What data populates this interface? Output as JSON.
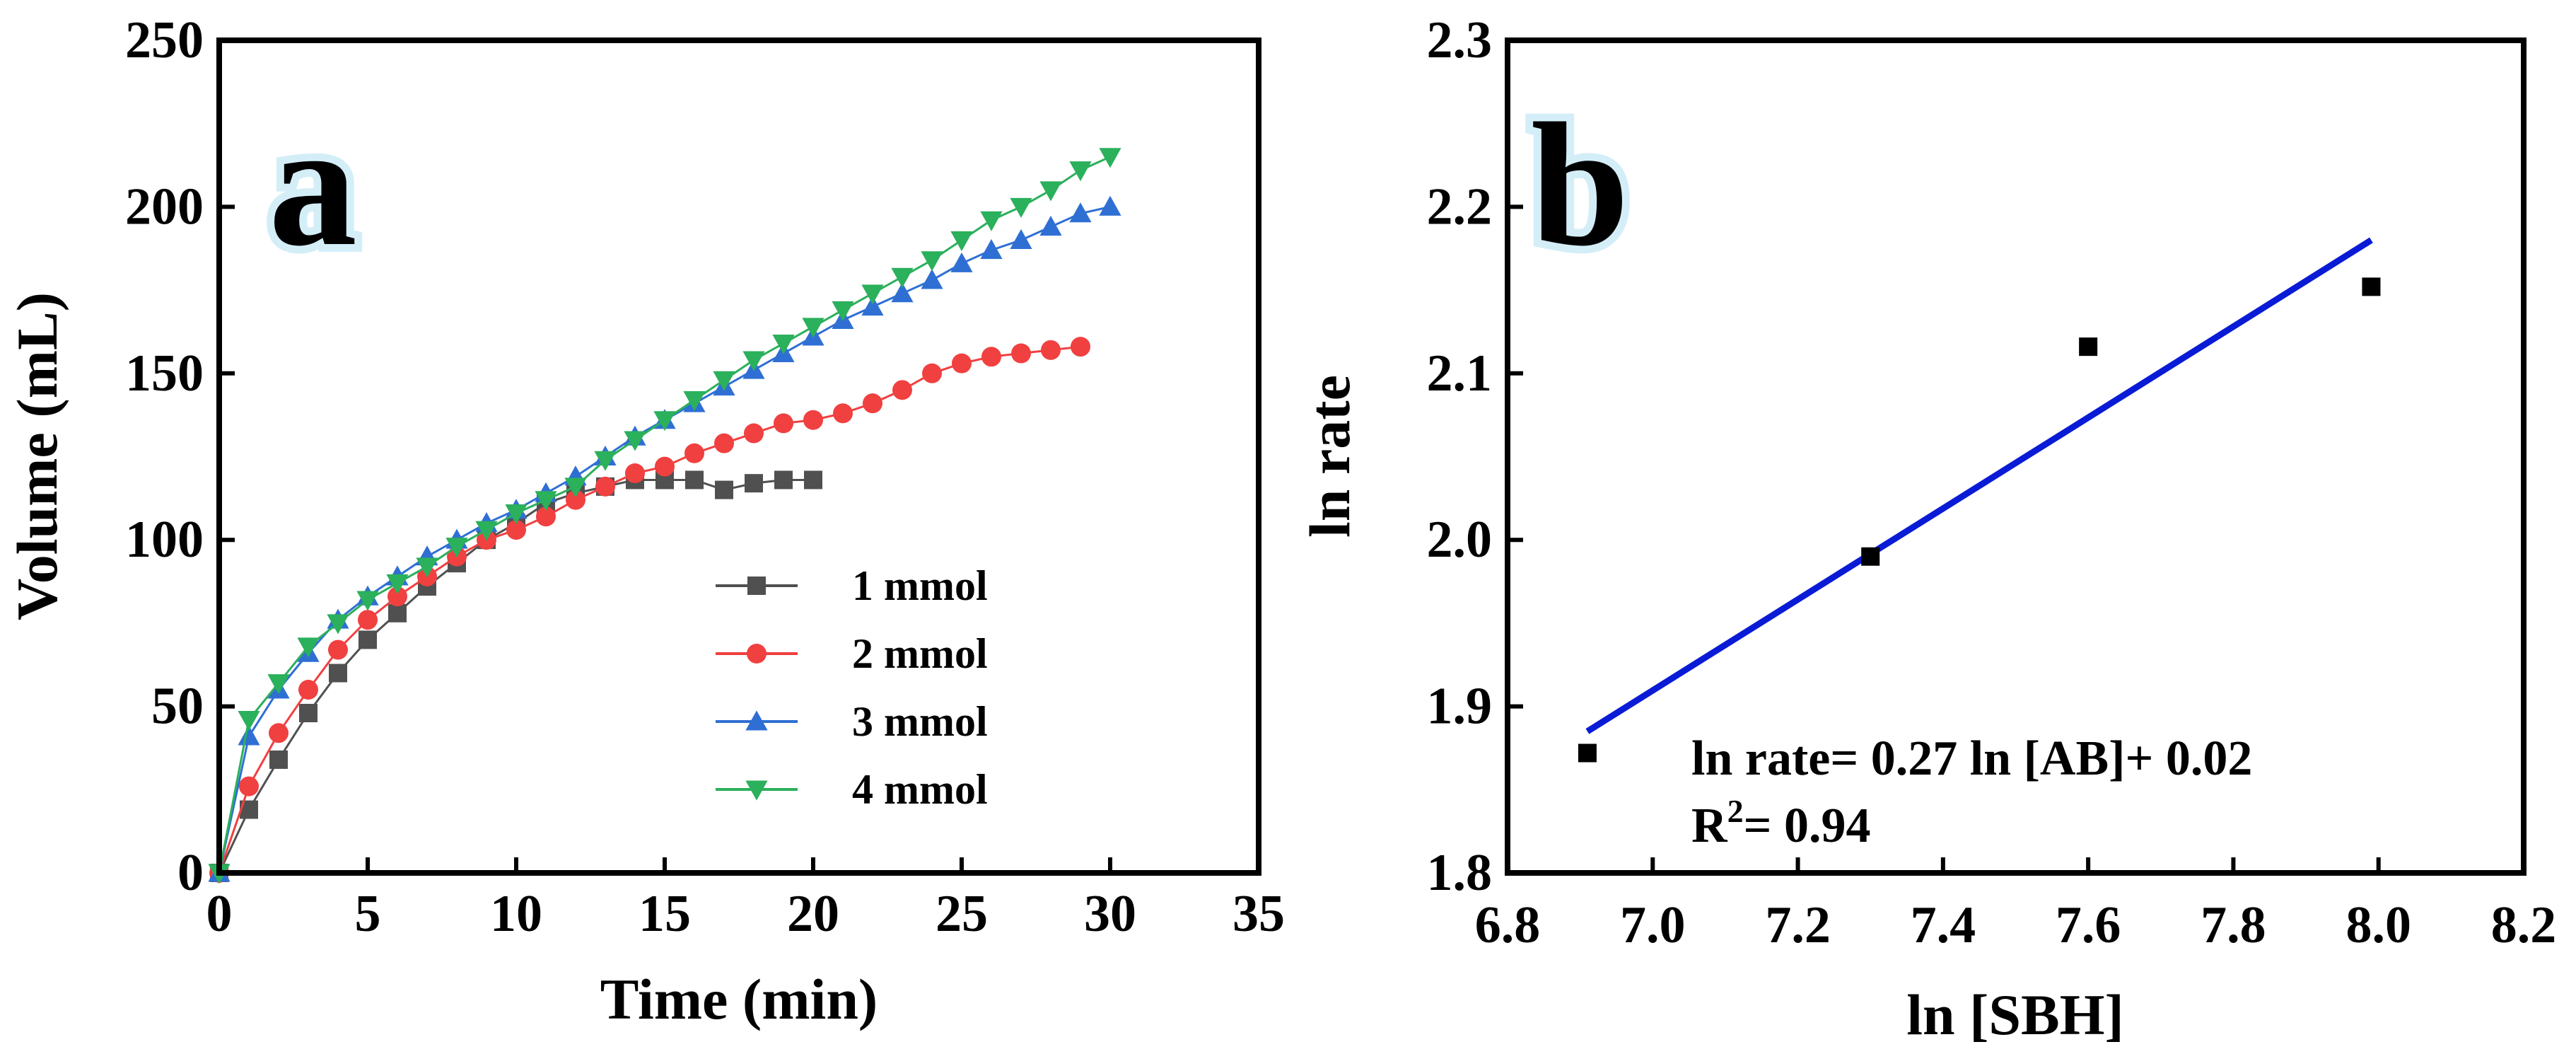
{
  "chart_data": [
    {
      "panel_label": "a",
      "type": "line",
      "xlabel": "Time (min)",
      "ylabel": "Volume (mL)",
      "xlim": [
        0,
        35
      ],
      "ylim": [
        0,
        250
      ],
      "xticks": [
        0,
        5,
        10,
        15,
        20,
        25,
        30,
        35
      ],
      "yticks": [
        0,
        50,
        100,
        150,
        200,
        250
      ],
      "grid": false,
      "legend_position": "center-right",
      "series": [
        {
          "name": "1 mmol",
          "color": "#505050",
          "marker": "square",
          "x": [
            0,
            1,
            2,
            3,
            4,
            5,
            6,
            7,
            8,
            9,
            10,
            11,
            12,
            13,
            14,
            15,
            16,
            17,
            18,
            19,
            20
          ],
          "y": [
            0,
            19,
            34,
            48,
            60,
            70,
            78,
            86,
            93,
            100,
            105,
            111,
            114,
            116,
            118,
            118,
            118,
            115,
            117,
            118,
            118
          ]
        },
        {
          "name": "2 mmol",
          "color": "#f04040",
          "marker": "circle",
          "x": [
            0,
            1,
            2,
            3,
            4,
            5,
            6,
            7,
            8,
            9,
            10,
            11,
            12,
            13,
            14,
            15,
            16,
            17,
            18,
            19,
            20,
            21,
            22,
            23,
            24,
            25,
            26,
            27,
            28,
            29
          ],
          "y": [
            0,
            26,
            42,
            55,
            67,
            76,
            83,
            89,
            95,
            100,
            103,
            107,
            112,
            116,
            120,
            122,
            126,
            129,
            132,
            135,
            136,
            138,
            141,
            145,
            150,
            153,
            155,
            156,
            157,
            158
          ]
        },
        {
          "name": "3 mmol",
          "color": "#2f6fd4",
          "marker": "triangle-up",
          "x": [
            0,
            1,
            2,
            3,
            4,
            5,
            6,
            7,
            8,
            9,
            10,
            11,
            12,
            13,
            14,
            15,
            16,
            17,
            18,
            19,
            20,
            21,
            22,
            23,
            24,
            25,
            26,
            27,
            28,
            29,
            30
          ],
          "y": [
            0,
            41,
            55,
            66,
            76,
            83,
            89,
            95,
            100,
            105,
            109,
            114,
            119,
            125,
            131,
            136,
            141,
            146,
            151,
            156,
            161,
            166,
            170,
            174,
            178,
            183,
            187,
            190,
            194,
            198,
            200
          ]
        },
        {
          "name": "4 mmol",
          "color": "#2bb05c",
          "marker": "triangle-down",
          "x": [
            0,
            1,
            2,
            3,
            4,
            5,
            6,
            7,
            8,
            9,
            10,
            11,
            12,
            13,
            14,
            15,
            16,
            17,
            18,
            19,
            20,
            21,
            22,
            23,
            24,
            25,
            26,
            27,
            28,
            29,
            30
          ],
          "y": [
            0,
            46,
            57,
            68,
            75,
            82,
            87,
            92,
            98,
            103,
            108,
            112,
            116,
            124,
            130,
            136,
            142,
            148,
            154,
            159,
            164,
            169,
            174,
            179,
            184,
            190,
            196,
            200,
            205,
            211,
            215
          ]
        }
      ]
    },
    {
      "panel_label": "b",
      "type": "scatter",
      "xlabel": "ln [SBH]",
      "ylabel": "ln rate",
      "xlim": [
        6.8,
        8.2
      ],
      "ylim": [
        1.8,
        2.3
      ],
      "xticks": [
        "6.8",
        "7.0",
        "7.2",
        "7.4",
        "7.6",
        "7.8",
        "8.0",
        "8.2"
      ],
      "yticks": [
        "1.8",
        "1.9",
        "2.0",
        "2.1",
        "2.2",
        "2.3"
      ],
      "grid": false,
      "points": {
        "color": "#000000",
        "marker": "square",
        "x": [
          6.91,
          7.3,
          7.6,
          7.99
        ],
        "y": [
          1.872,
          1.99,
          2.116,
          2.152
        ]
      },
      "fit_line": {
        "color": "#0a1bd6",
        "x": [
          6.91,
          7.99
        ],
        "y": [
          1.885,
          2.18
        ]
      },
      "annotation": {
        "equation": "ln rate= 0.27 ln [AB]+ 0.02",
        "r2_prefix": "R",
        "r2_superscript": "2",
        "r2_value": "= 0.94"
      }
    }
  ]
}
